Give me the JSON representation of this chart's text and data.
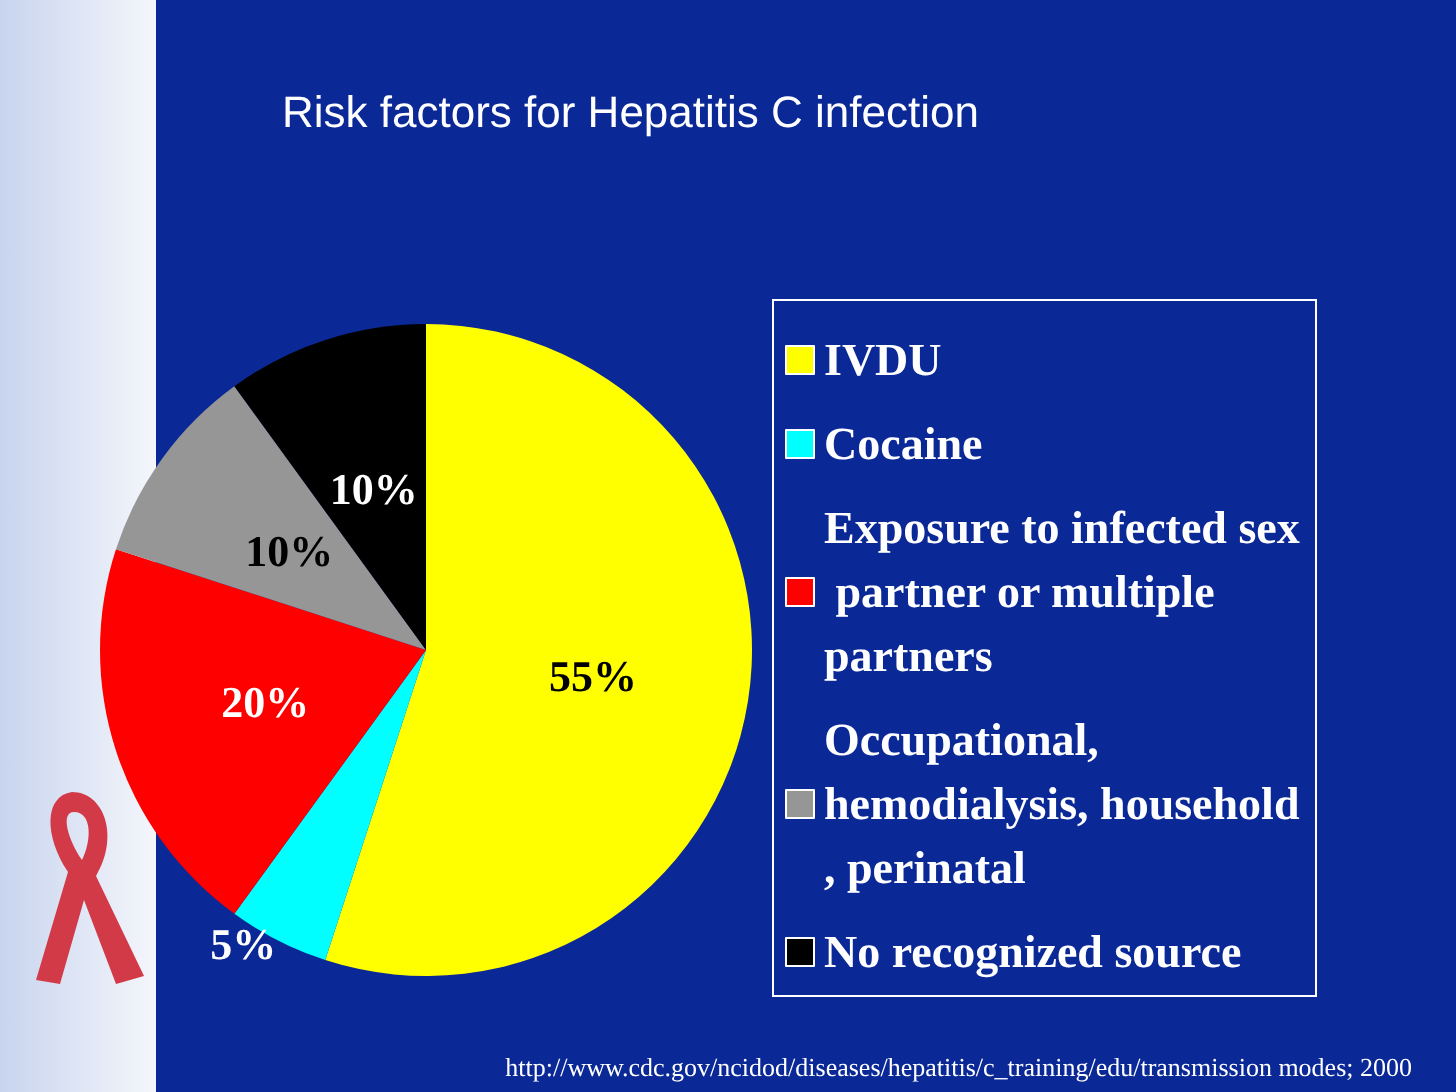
{
  "chart_data": {
    "type": "pie",
    "title": "Risk factors for Hepatitis C infection",
    "categories": [
      "IVDU",
      "Cocaine",
      "Exposure to infected sex partner or multiple partners",
      "Occupational, hemodialysis, household, perinatal",
      "No recognized source"
    ],
    "values": [
      55,
      5,
      20,
      10,
      10
    ],
    "colors": [
      "#ffff00",
      "#00ffff",
      "#ff0000",
      "#969696",
      "#000000"
    ],
    "value_labels": [
      "55%",
      "5%",
      "20%",
      "10%",
      "10%"
    ],
    "legend": "right",
    "annotations": [
      "http://www.cdc.gov/ncidod/diseases/hepatitis/c_training/edu/transmission modes; 2000"
    ]
  }
}
